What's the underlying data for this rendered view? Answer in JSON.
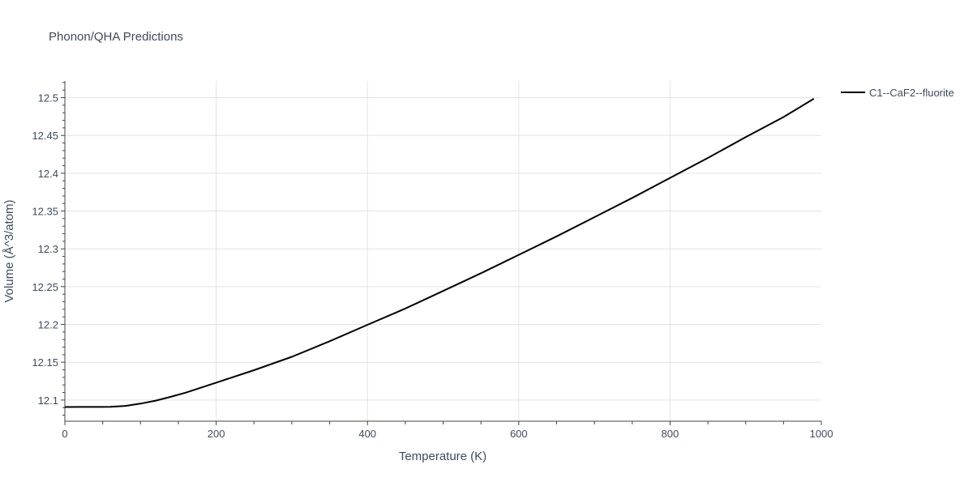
{
  "chart_data": {
    "type": "line",
    "title": "Phonon/QHA Predictions",
    "xlabel": "Temperature (K)",
    "ylabel": "Volume (Å^3/atom)",
    "xlim": [
      0,
      1000
    ],
    "ylim": [
      12.072,
      12.522
    ],
    "xticks": [
      0,
      200,
      400,
      600,
      800,
      1000
    ],
    "yticks": [
      12.1,
      12.15,
      12.2,
      12.25,
      12.3,
      12.35,
      12.4,
      12.45,
      12.5
    ],
    "xtick_labels": [
      "0",
      "200",
      "400",
      "600",
      "800",
      "1000"
    ],
    "ytick_labels": [
      "12.1",
      "12.15",
      "12.2",
      "12.25",
      "12.3",
      "12.35",
      "12.4",
      "12.45",
      "12.5"
    ],
    "grid": true,
    "legend_position": "top-right",
    "series": [
      {
        "name": "C1--CaF2--fluorite",
        "color": "#000000",
        "x": [
          0,
          20,
          40,
          60,
          80,
          100,
          120,
          140,
          160,
          180,
          200,
          250,
          300,
          350,
          400,
          450,
          500,
          550,
          600,
          650,
          700,
          750,
          800,
          850,
          900,
          950,
          990
        ],
        "y": [
          12.0908,
          12.0909,
          12.0909,
          12.091,
          12.0923,
          12.0953,
          12.0992,
          12.1042,
          12.1098,
          12.1164,
          12.123,
          12.1395,
          12.1572,
          12.1777,
          12.1995,
          12.221,
          12.2443,
          12.2677,
          12.2921,
          12.3165,
          12.3419,
          12.3674,
          12.3939,
          12.4202,
          12.4478,
          12.4743,
          12.4985
        ]
      }
    ]
  }
}
